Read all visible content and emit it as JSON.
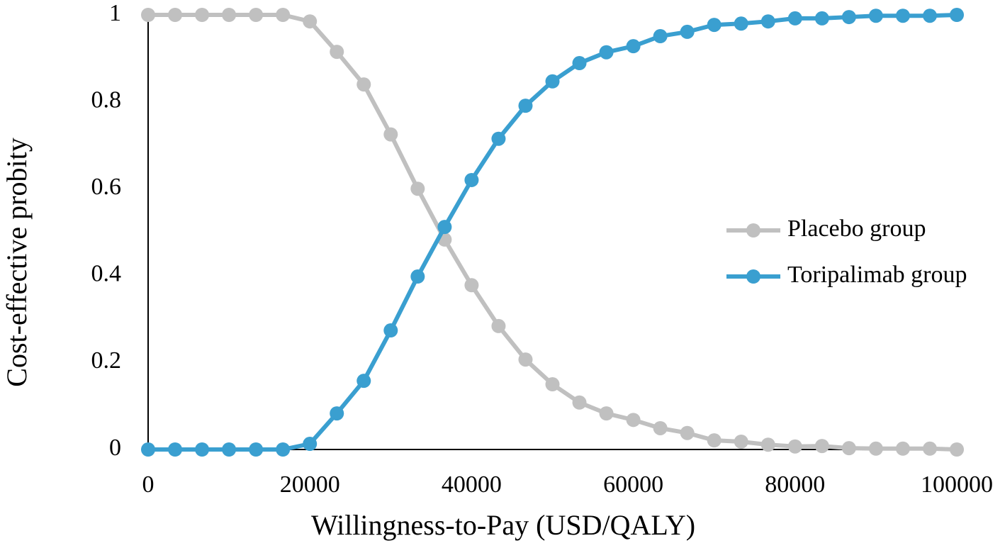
{
  "chart_data": {
    "type": "line",
    "x_label": "Willingness-to-Pay (USD/QALY)",
    "y_label": "Cost-effective probity",
    "x": [
      0,
      3333,
      6667,
      10000,
      13333,
      16667,
      20000,
      23333,
      26667,
      30000,
      33333,
      36667,
      40000,
      43333,
      46667,
      50000,
      53333,
      56667,
      60000,
      63333,
      66667,
      70000,
      73333,
      76667,
      80000,
      83333,
      86667,
      90000,
      93333,
      96667,
      100000
    ],
    "series": [
      {
        "name": "Placebo group",
        "color": "#c0c0c0",
        "values": [
          1,
          1,
          1,
          1,
          1,
          1,
          0.985,
          0.915,
          0.84,
          0.725,
          0.6,
          0.483,
          0.378,
          0.284,
          0.207,
          0.15,
          0.108,
          0.083,
          0.068,
          0.049,
          0.038,
          0.021,
          0.018,
          0.011,
          0.007,
          0.008,
          0.003,
          0.002,
          0.002,
          0.002,
          0
        ]
      },
      {
        "name": "Toripalimab group",
        "color": "#3a9fd0",
        "values": [
          0,
          0,
          0,
          0,
          0,
          0,
          0.013,
          0.083,
          0.158,
          0.274,
          0.398,
          0.512,
          0.62,
          0.715,
          0.791,
          0.847,
          0.889,
          0.914,
          0.928,
          0.951,
          0.961,
          0.977,
          0.98,
          0.985,
          0.992,
          0.992,
          0.995,
          0.998,
          0.998,
          0.998,
          1
        ]
      }
    ],
    "xlim": [
      0,
      100000
    ],
    "xticks": [
      0,
      20000,
      40000,
      60000,
      80000,
      100000
    ],
    "ylim": [
      0,
      1
    ],
    "yticks": [
      0,
      0.2,
      0.4,
      0.6,
      0.8,
      1
    ],
    "grid": false,
    "legend": "right"
  }
}
